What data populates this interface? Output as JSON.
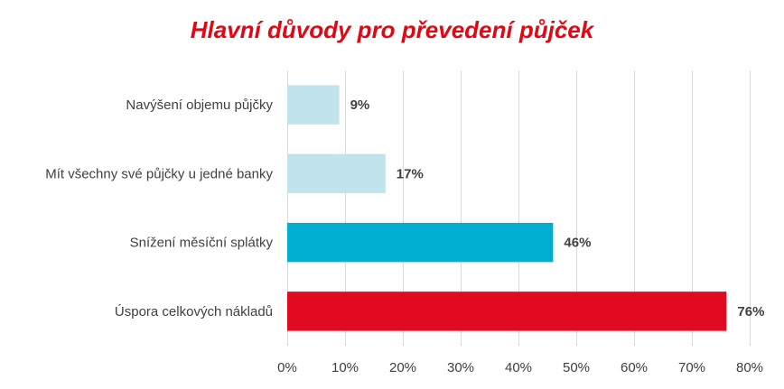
{
  "chart_data": {
    "type": "bar",
    "orientation": "horizontal",
    "title": "Hlavní důvody pro převedení půjček",
    "title_color": "#e30613",
    "categories": [
      "Navýšení objemu půjčky",
      "Mít všechny své půjčky u jedné banky",
      "Snížení měsíční splátky",
      "Úspora celkových nákladů"
    ],
    "values": [
      9,
      17,
      46,
      76
    ],
    "value_labels": [
      "9%",
      "17%",
      "46%",
      "76%"
    ],
    "bar_colors": [
      "#c1e3ec",
      "#c1e3ec",
      "#00aed1",
      "#e20a1f"
    ],
    "xlabel": "",
    "ylabel": "",
    "xlim": [
      0,
      80
    ],
    "x_ticks": [
      0,
      10,
      20,
      30,
      40,
      50,
      60,
      70,
      80
    ],
    "x_tick_labels": [
      "0%",
      "10%",
      "20%",
      "30%",
      "40%",
      "50%",
      "60%",
      "70%",
      "80%"
    ],
    "grid": true,
    "grid_color": "#d9d9d9",
    "legend": "none"
  }
}
